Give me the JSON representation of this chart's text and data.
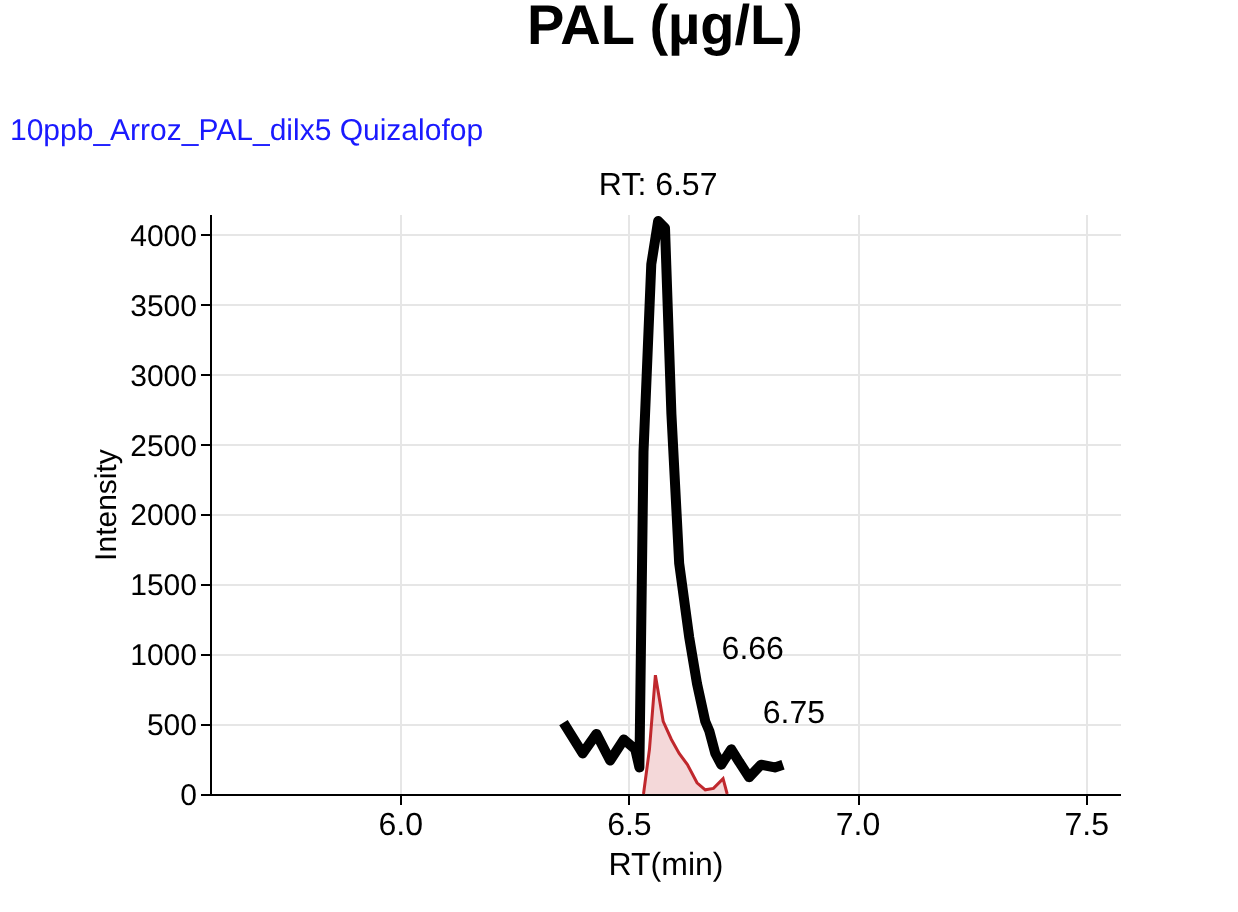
{
  "chart_data": {
    "type": "line",
    "title": "PAL (µg/L)",
    "subtitle": "10ppb_Arroz_PAL_dilx5   Quizalofop",
    "xlabel": "RT(min)",
    "ylabel": "Intensity",
    "xlim": [
      5.585,
      7.575
    ],
    "xticks": [
      {
        "value": 6.0,
        "label": "6.0"
      },
      6.5,
      {
        "value": 7.0,
        "label": "7.0"
      },
      7.5
    ],
    "ylim": [
      0,
      4150
    ],
    "yticks": [
      0,
      500,
      1000,
      1500,
      2000,
      2500,
      3000,
      3500,
      4000
    ],
    "grid": true,
    "marker": "none",
    "line_style": "solid",
    "series": [
      {
        "color": "#000000",
        "x": [
          6.358,
          6.4,
          6.43,
          6.46,
          6.49,
          6.515,
          6.524,
          6.533,
          6.55,
          6.565,
          6.58,
          6.594,
          6.611,
          6.633,
          6.65,
          6.668,
          6.677,
          6.69,
          6.703,
          6.725,
          6.742,
          6.764,
          6.79,
          6.82,
          6.838
        ],
        "values": [
          510,
          290,
          430,
          240,
          390,
          320,
          190,
          2450,
          3790,
          4100,
          4050,
          2720,
          1650,
          1120,
          790,
          520,
          450,
          290,
          210,
          320,
          230,
          120,
          210,
          190,
          210
        ]
      },
      {
        "type": "area",
        "color": "#c0282d",
        "x": [
          6.533,
          6.546,
          6.559,
          6.576,
          6.594,
          6.611,
          6.629,
          6.65,
          6.668,
          6.686,
          6.707,
          6.716
        ],
        "values": [
          0,
          320,
          850,
          520,
          390,
          290,
          210,
          80,
          30,
          40,
          110,
          0
        ]
      }
    ],
    "annotations": [
      {
        "text": "RT: 6.57",
        "x": 6.565,
        "y": 4100
      },
      {
        "text": "6.66",
        "x": 6.66,
        "y": 640
      },
      {
        "text": "6.75",
        "x": 6.75,
        "y": 180
      }
    ]
  }
}
